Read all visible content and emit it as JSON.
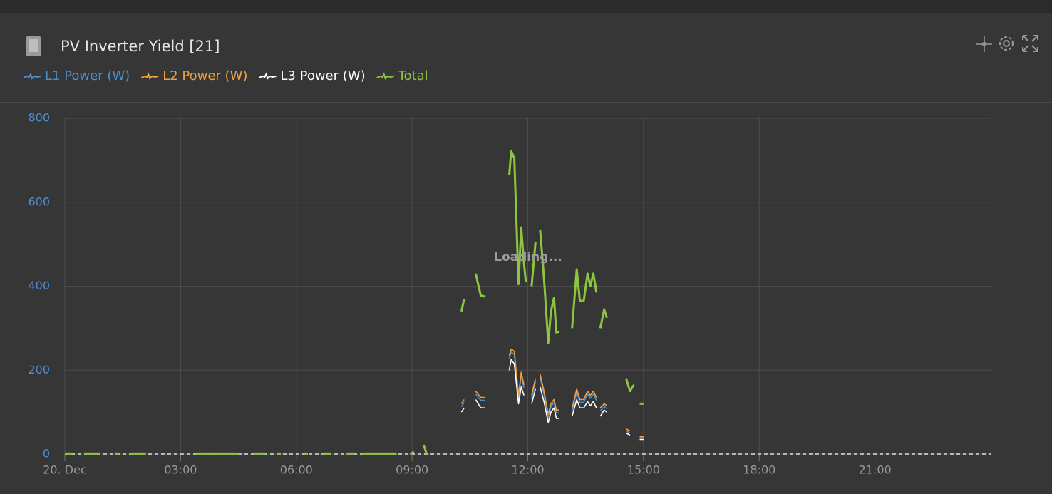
{
  "chart_data": {
    "type": "line",
    "title": "PV Inverter Yield [21]",
    "annotations": [
      "Loading..."
    ],
    "xlim": [
      0,
      24
    ],
    "xticks": [
      {
        "value": 0,
        "label": "20. Dec"
      },
      {
        "value": 3,
        "label": "03:00"
      },
      {
        "value": 6,
        "label": "06:00"
      },
      {
        "value": 9,
        "label": "09:00"
      },
      {
        "value": 12,
        "label": "12:00"
      },
      {
        "value": 15,
        "label": "15:00"
      },
      {
        "value": 18,
        "label": "18:00"
      },
      {
        "value": 21,
        "label": "21:00"
      }
    ],
    "ylim": [
      0,
      800
    ],
    "yticks": [
      0,
      200,
      400,
      600,
      800
    ],
    "grid": true,
    "legend": "top-left",
    "series": [
      {
        "name": "L1 Power (W)",
        "color": "#4a90d9",
        "x": [
          10.28,
          10.35,
          null,
          10.65,
          10.78,
          10.9,
          null,
          11.52,
          11.57,
          11.65,
          11.76,
          11.83,
          11.9,
          null,
          12.1,
          12.2,
          null,
          12.32,
          12.42,
          12.53,
          12.6,
          12.68,
          12.74,
          12.82,
          null,
          13.15,
          13.27,
          13.35,
          13.45,
          13.55,
          13.62,
          13.7,
          13.78,
          null,
          13.88,
          13.98,
          14.05,
          null,
          14.55,
          14.65,
          null,
          14.9,
          15.0
        ],
        "values": [
          113,
          123,
          null,
          143,
          128,
          128,
          null,
          228,
          243,
          238,
          133,
          188,
          158,
          null,
          133,
          173,
          null,
          183,
          143,
          88,
          113,
          123,
          98,
          98,
          null,
          103,
          148,
          123,
          123,
          143,
          133,
          143,
          128,
          null,
          103,
          113,
          108,
          null,
          55,
          50,
          null,
          40,
          40
        ]
      },
      {
        "name": "L2 Power (W)",
        "color": "#f0a040",
        "x": [
          10.28,
          10.35,
          null,
          10.65,
          10.78,
          10.9,
          null,
          11.52,
          11.57,
          11.65,
          11.76,
          11.83,
          11.9,
          null,
          12.1,
          12.2,
          null,
          12.32,
          12.42,
          12.53,
          12.6,
          12.68,
          12.74,
          12.82,
          null,
          13.15,
          13.27,
          13.35,
          13.45,
          13.55,
          13.62,
          13.7,
          13.78,
          null,
          13.88,
          13.98,
          14.05,
          null,
          14.55,
          14.65,
          null,
          14.9,
          15.0
        ],
        "values": [
          120,
          130,
          null,
          150,
          135,
          135,
          null,
          235,
          250,
          245,
          140,
          195,
          165,
          null,
          140,
          180,
          null,
          190,
          150,
          95,
          120,
          130,
          105,
          105,
          null,
          110,
          155,
          130,
          130,
          150,
          140,
          150,
          135,
          null,
          110,
          120,
          115,
          null,
          60,
          55,
          null,
          42,
          42
        ]
      },
      {
        "name": "L3 Power (W)",
        "color": "#ffffff",
        "x": [
          10.28,
          10.35,
          null,
          10.65,
          10.78,
          10.9,
          null,
          11.52,
          11.57,
          11.65,
          11.76,
          11.83,
          11.9,
          null,
          12.1,
          12.2,
          null,
          12.32,
          12.42,
          12.53,
          12.6,
          12.68,
          12.74,
          12.82,
          null,
          13.15,
          13.27,
          13.35,
          13.45,
          13.55,
          13.62,
          13.7,
          13.78,
          null,
          13.88,
          13.98,
          14.05,
          null,
          14.55,
          14.65,
          null,
          14.9,
          15.0
        ],
        "values": [
          100,
          110,
          null,
          130,
          110,
          110,
          null,
          200,
          225,
          215,
          120,
          160,
          140,
          null,
          120,
          155,
          null,
          160,
          125,
          75,
          100,
          110,
          85,
          85,
          null,
          90,
          130,
          110,
          110,
          125,
          115,
          125,
          110,
          null,
          90,
          105,
          100,
          null,
          50,
          45,
          null,
          35,
          35
        ]
      },
      {
        "name": "Total",
        "color": "#8cc63f",
        "x": [
          0.0,
          0.2,
          null,
          0.5,
          0.9,
          null,
          1.3,
          1.4,
          null,
          1.7,
          2.1,
          null,
          3.4,
          4.5,
          null,
          4.9,
          5.2,
          null,
          5.5,
          5.6,
          null,
          6.2,
          6.3,
          null,
          6.7,
          6.9,
          null,
          7.3,
          7.5,
          null,
          7.7,
          8.6,
          null,
          8.95,
          9.05,
          null,
          9.3,
          9.38,
          null,
          10.28,
          10.35,
          null,
          10.65,
          10.78,
          10.9,
          null,
          11.52,
          11.57,
          11.65,
          11.76,
          11.83,
          11.9,
          11.95,
          null,
          12.1,
          12.2,
          null,
          12.32,
          12.42,
          12.53,
          12.6,
          12.68,
          12.74,
          12.82,
          null,
          13.15,
          13.27,
          13.35,
          13.45,
          13.55,
          13.62,
          13.7,
          13.78,
          null,
          13.88,
          13.98,
          14.05,
          null,
          14.55,
          14.65,
          14.75,
          null,
          14.9,
          15.0
        ],
        "values": [
          1,
          1,
          null,
          1,
          1,
          null,
          1,
          1,
          null,
          1,
          1,
          null,
          1,
          1,
          null,
          1,
          1,
          null,
          1,
          1,
          null,
          1,
          1,
          null,
          1,
          1,
          null,
          1,
          1,
          null,
          1,
          1,
          null,
          0,
          5,
          null,
          22,
          0,
          null,
          340,
          370,
          null,
          430,
          378,
          375,
          null,
          665,
          722,
          705,
          405,
          540,
          455,
          410,
          null,
          400,
          505,
          null,
          535,
          420,
          265,
          340,
          372,
          290,
          292,
          null,
          300,
          440,
          365,
          365,
          430,
          400,
          430,
          385,
          null,
          300,
          345,
          325,
          null,
          180,
          150,
          165,
          null,
          120,
          120
        ]
      }
    ]
  }
}
